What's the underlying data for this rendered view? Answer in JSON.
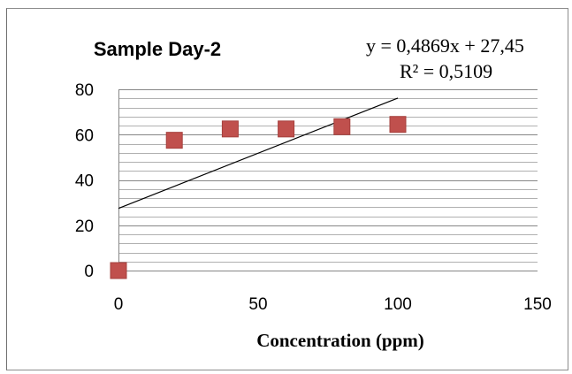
{
  "chart_data": {
    "type": "scatter",
    "title": "Sample Day-2",
    "xlabel": "Concentration (ppm)",
    "ylabel": "",
    "xlim": [
      0,
      150
    ],
    "ylim": [
      0,
      80
    ],
    "x_ticks": [
      "0",
      "50",
      "100",
      "150"
    ],
    "y_ticks": [
      "0",
      "20",
      "40",
      "60",
      "80"
    ],
    "minor_grid_step": 4,
    "grid": true,
    "legend": "none",
    "series": [
      {
        "x": [
          0,
          20,
          40,
          60,
          80,
          100
        ],
        "y": [
          0,
          57.5,
          62.5,
          62.5,
          63.5,
          64.5
        ],
        "marker": "square",
        "color": "#c0504d"
      }
    ],
    "trendline": {
      "type": "linear",
      "slope": 0.4869,
      "intercept": 27.45,
      "x_range": [
        0,
        100
      ],
      "color": "#000000",
      "equation_text": "y = 0,4869x + 27,45",
      "r2_text": "R² = 0,5109"
    }
  }
}
